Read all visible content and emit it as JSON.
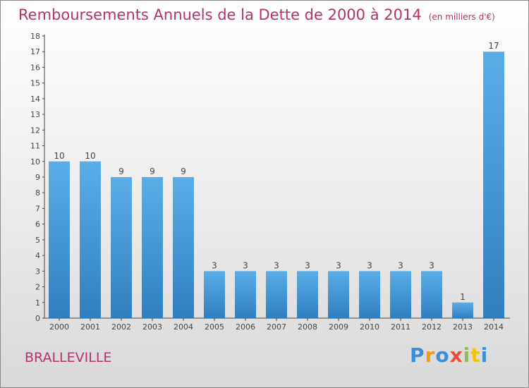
{
  "chart_data": {
    "type": "bar",
    "title": "Remboursements Annuels de la Dette de 2000 à 2014",
    "subtitle": "(en milliers d'€)",
    "categories": [
      "2000",
      "2001",
      "2002",
      "2003",
      "2004",
      "2005",
      "2006",
      "2007",
      "2008",
      "2009",
      "2010",
      "2011",
      "2012",
      "2013",
      "2014"
    ],
    "values": [
      10,
      10,
      9,
      9,
      9,
      3,
      3,
      3,
      3,
      3,
      3,
      3,
      3,
      1,
      17
    ],
    "ylim": [
      0,
      18
    ],
    "yticks": [
      0,
      1,
      2,
      3,
      4,
      5,
      6,
      7,
      8,
      9,
      10,
      11,
      12,
      13,
      14,
      15,
      16,
      17,
      18
    ],
    "bar_color": "#4a9fe0"
  },
  "commune": "BRALLEVILLE",
  "logo": "Proxiti"
}
